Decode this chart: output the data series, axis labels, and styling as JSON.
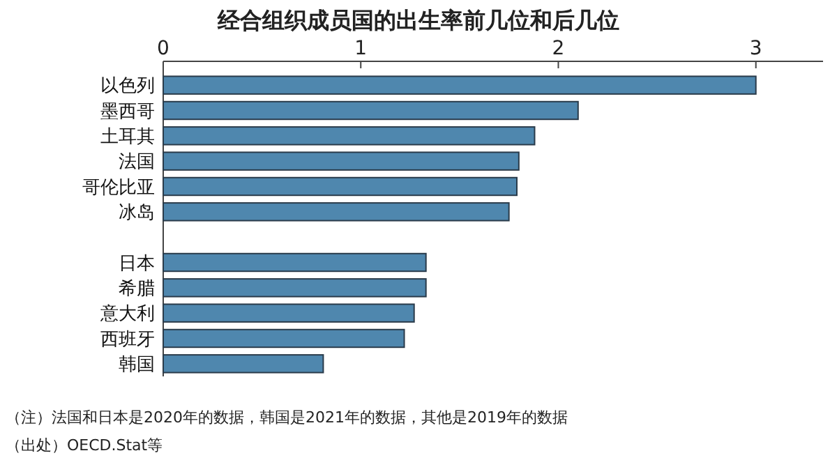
{
  "chart_data": {
    "type": "bar",
    "orientation": "horizontal",
    "title": "经合组织成员国的出生率前几位和后几位",
    "categories": [
      "以色列",
      "墨西哥",
      "土耳其",
      "法国",
      "哥伦比亚",
      "冰岛",
      null,
      "日本",
      "希腊",
      "意大利",
      "西班牙",
      "韩国"
    ],
    "values": [
      3.0,
      2.1,
      1.88,
      1.8,
      1.79,
      1.75,
      null,
      1.33,
      1.33,
      1.27,
      1.22,
      0.81
    ],
    "color": "#4f87ae",
    "xlim": [
      0,
      3.34
    ],
    "xticks": [
      0,
      1,
      2,
      3
    ],
    "grid": false,
    "annotations": [
      "（注）法国和日本是2020年的数据，韩国是2021年的数据，其他是2019年的数据",
      "（出处）OECD.Stat等"
    ]
  }
}
